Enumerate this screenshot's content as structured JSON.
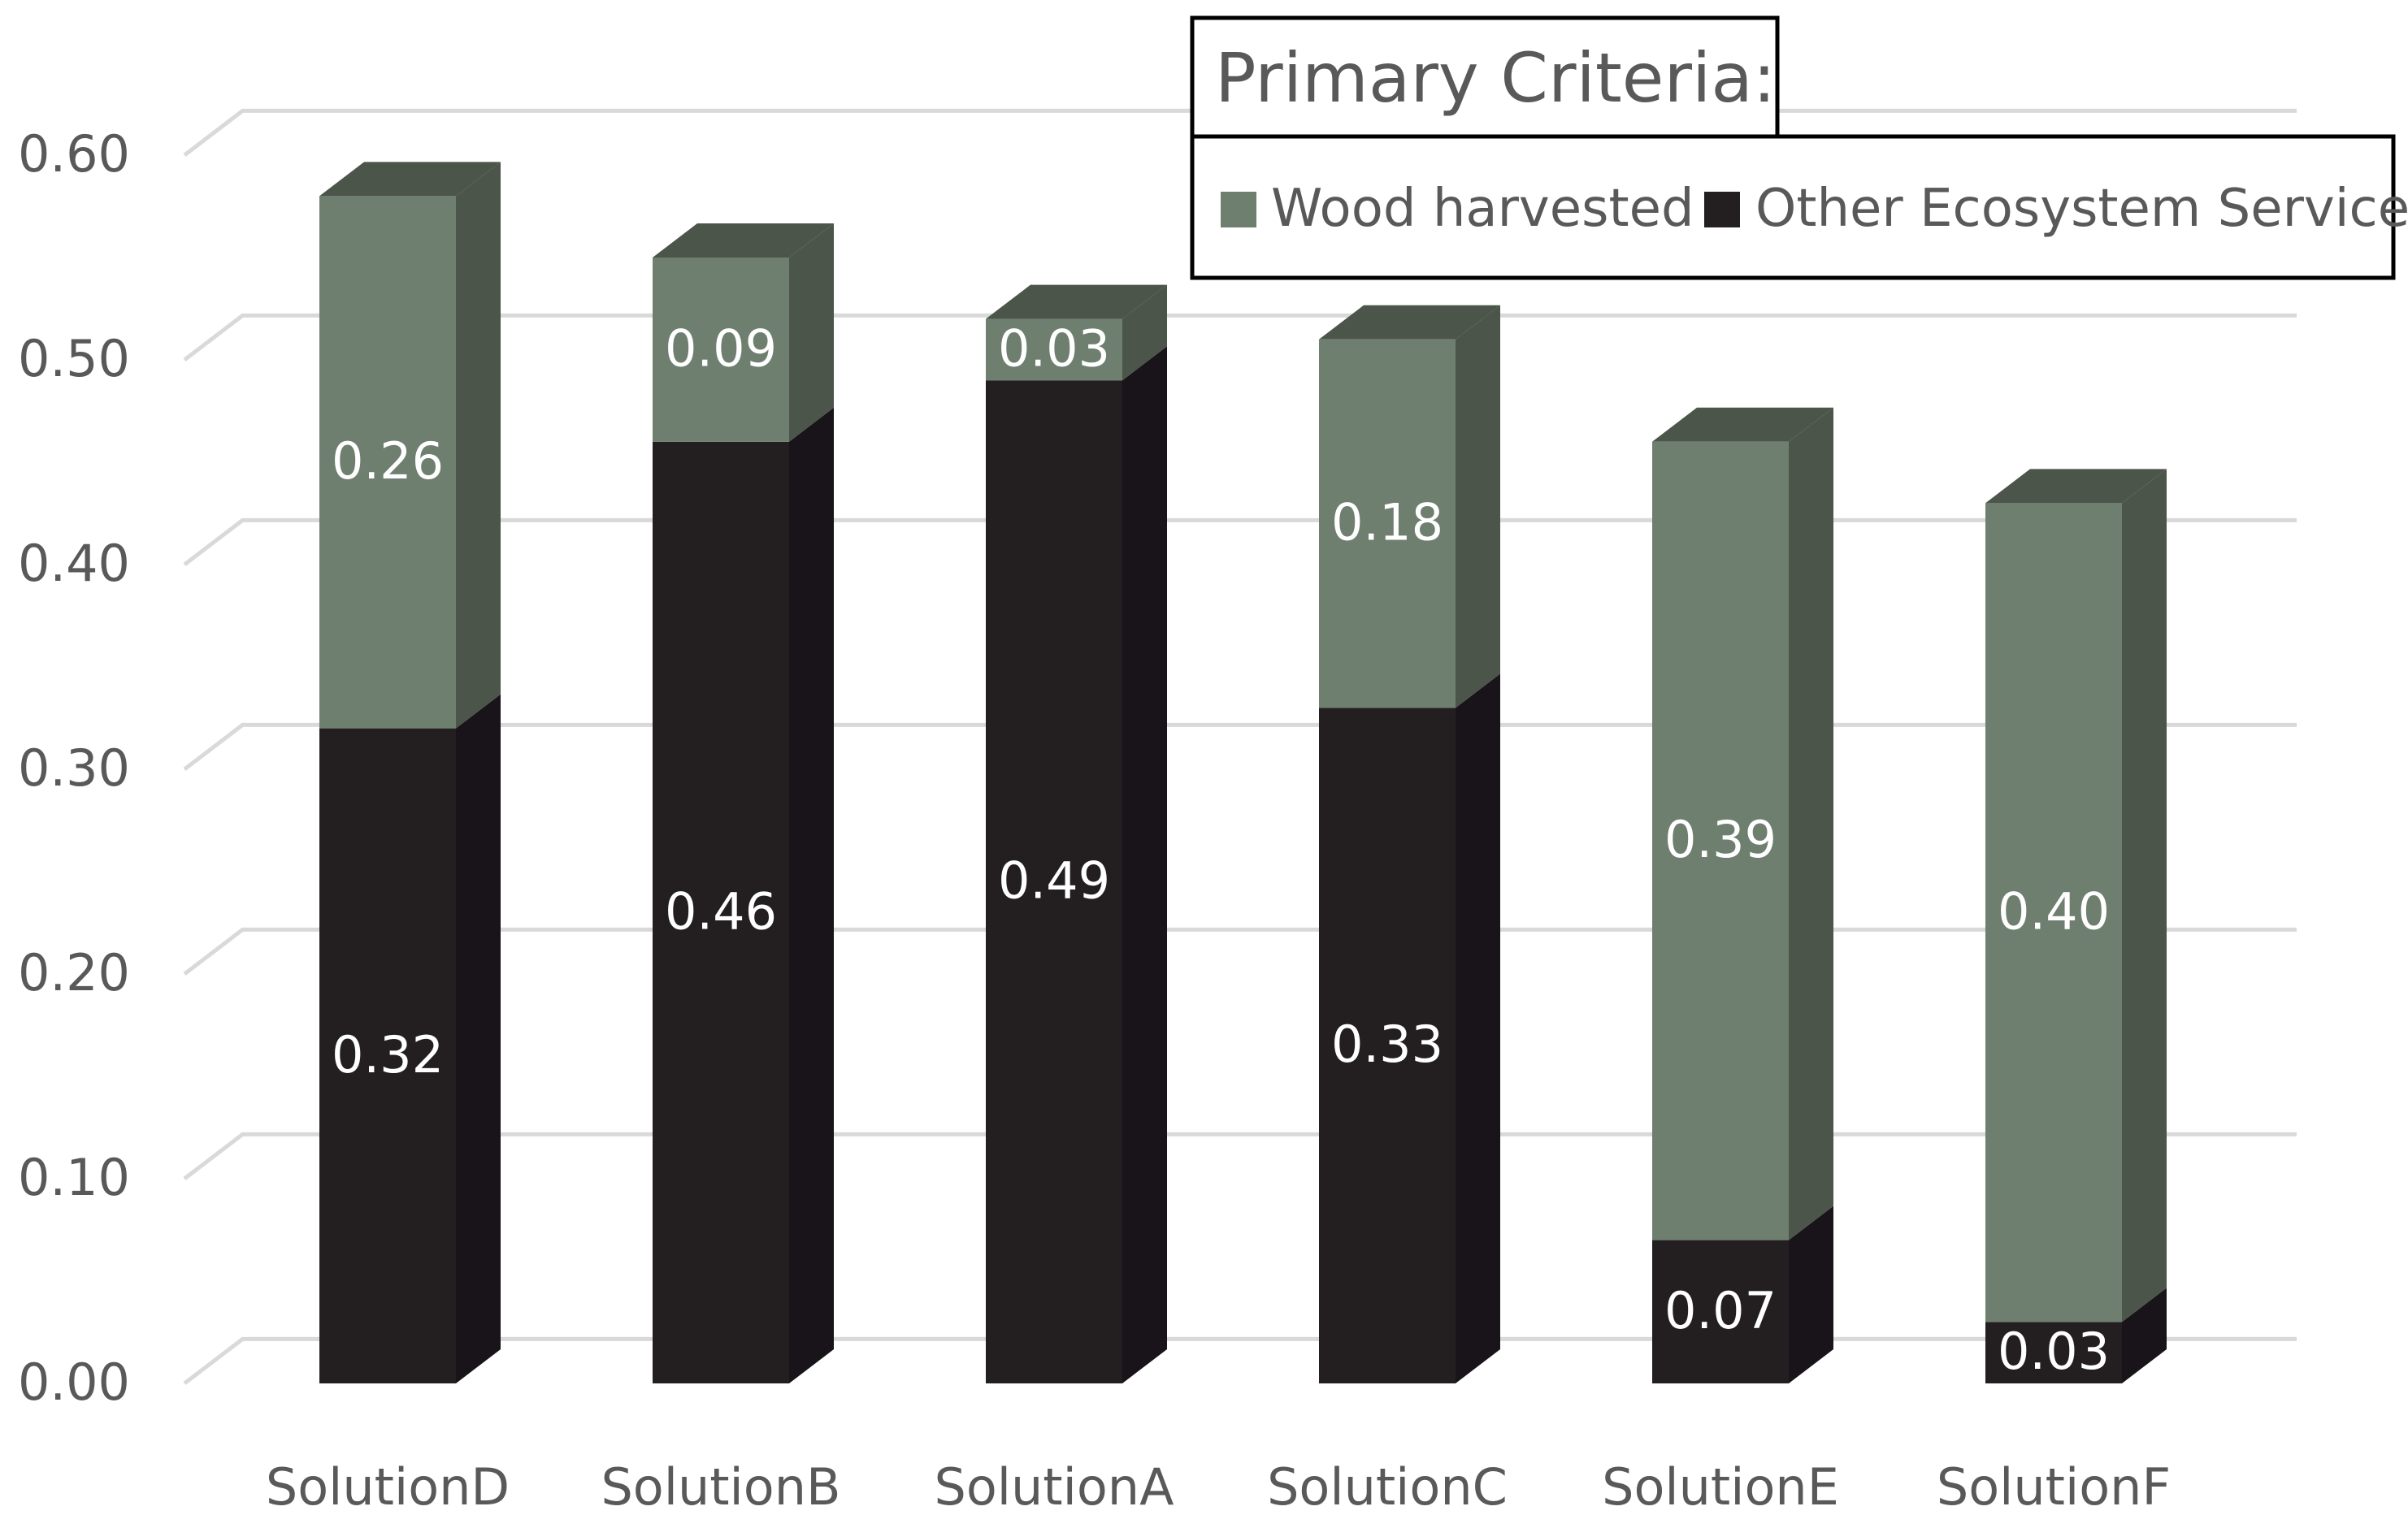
{
  "chart_data": {
    "type": "bar",
    "stacked": true,
    "style": "3d-column",
    "categories": [
      "SolutionD",
      "SolutionB",
      "SolutionA",
      "SolutionC",
      "SolutionE",
      "SolutionF"
    ],
    "series": [
      {
        "name": "Other Ecosystem Services",
        "values": [
          0.32,
          0.46,
          0.49,
          0.33,
          0.07,
          0.03
        ],
        "color": "#231f20",
        "side_color": "#18141a",
        "top_color": "#4a5249"
      },
      {
        "name": "Wood harvested",
        "values": [
          0.26,
          0.09,
          0.03,
          0.18,
          0.39,
          0.4
        ],
        "color": "#6e7f6f",
        "side_color": "#4b5549",
        "top_color": "#4b5549"
      }
    ],
    "data_labels": [
      [
        "0.32",
        "0.46",
        "0.49",
        "0.33",
        "0.07",
        "0.03"
      ],
      [
        "0.26",
        "0.09",
        "0.03",
        "0.18",
        "0.39",
        "0.40"
      ]
    ],
    "y_ticks": [
      "0.00",
      "0.10",
      "0.20",
      "0.30",
      "0.40",
      "0.50",
      "0.60"
    ],
    "ylim": [
      0,
      0.6
    ],
    "title": "",
    "xlabel": "",
    "ylabel": "",
    "grid": true,
    "legend": {
      "title": "Primary Criteria:",
      "placement": "top-right",
      "items": [
        "Wood harvested",
        "Other Ecosystem Services"
      ]
    }
  }
}
